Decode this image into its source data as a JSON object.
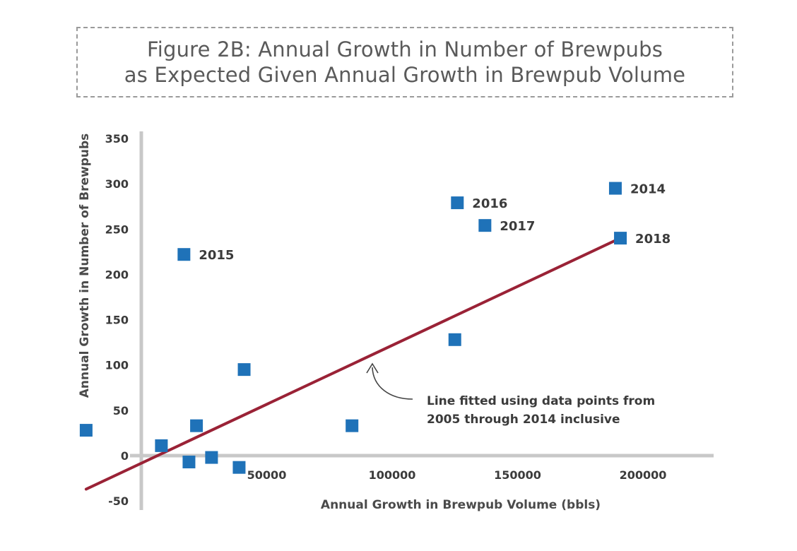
{
  "chart_data": {
    "type": "scatter",
    "title_lines": [
      "Figure 2B: Annual Growth in Number of Brewpubs",
      "as Expected Given Annual Growth in Brewpub Volume"
    ],
    "xlabel": "Annual Growth in Brewpub Volume (bbls)",
    "ylabel": "Annual Growth in Number of Brewpubs",
    "xlim": [
      -24000,
      230000
    ],
    "ylim": [
      -60,
      360
    ],
    "x_ticks": [
      50000,
      100000,
      150000,
      200000
    ],
    "y_ticks": [
      350,
      300,
      250,
      200,
      150,
      100,
      50,
      0,
      -50
    ],
    "grid": false,
    "marker_color": "#1f72b8",
    "line_color": "#9a2236",
    "axis_color": "#c8c8c8",
    "points": [
      {
        "x": -22000,
        "y": 28,
        "label": ""
      },
      {
        "x": 8000,
        "y": 11,
        "label": ""
      },
      {
        "x": 19000,
        "y": -7,
        "label": ""
      },
      {
        "x": 22000,
        "y": 33,
        "label": ""
      },
      {
        "x": 28000,
        "y": -2,
        "label": ""
      },
      {
        "x": 39000,
        "y": -13,
        "label": ""
      },
      {
        "x": 41000,
        "y": 95,
        "label": ""
      },
      {
        "x": 84000,
        "y": 33,
        "label": ""
      },
      {
        "x": 125000,
        "y": 128,
        "label": ""
      },
      {
        "x": 17000,
        "y": 222,
        "label": "2015"
      },
      {
        "x": 126000,
        "y": 279,
        "label": "2016"
      },
      {
        "x": 137000,
        "y": 254,
        "label": "2017"
      },
      {
        "x": 189000,
        "y": 295,
        "label": "2014"
      },
      {
        "x": 191000,
        "y": 240,
        "label": "2018"
      }
    ],
    "fit_line": {
      "x1": -22000,
      "y1": -37,
      "x2": 191000,
      "y2": 240
    },
    "annotation_lines": [
      "Line fitted using data points from",
      "2005 through 2014 inclusive"
    ]
  }
}
